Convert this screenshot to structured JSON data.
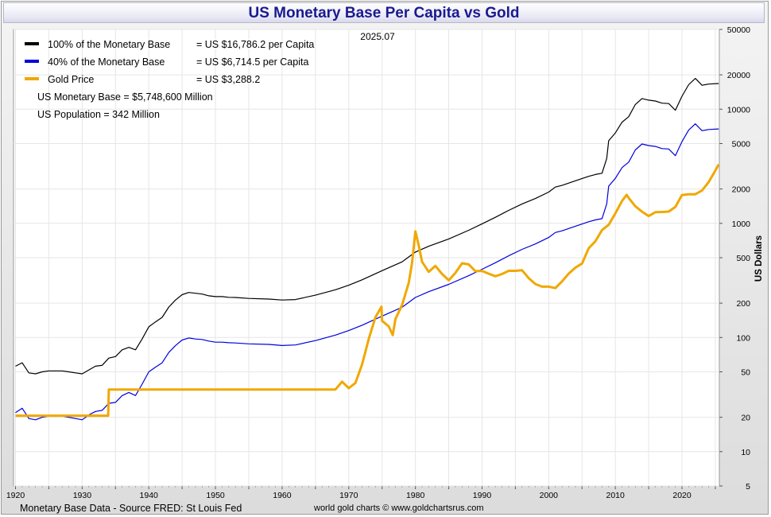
{
  "page": {
    "title": "US Monetary Base Per Capita vs Gold",
    "source_left": "Monetary Base Data - Source FRED: St Louis Fed",
    "source_right": "world gold charts © www.goldchartsrus.com"
  },
  "chart_data": {
    "type": "line",
    "title": "US Monetary Base Per Capita vs Gold",
    "date_label": "2025.07",
    "ylabel": "US Dollars",
    "yscale": "log",
    "xlim": [
      1919.7,
      2025.6
    ],
    "ylim": [
      5,
      50000
    ],
    "x_ticks": [
      1920,
      1930,
      1940,
      1950,
      1960,
      1970,
      1980,
      1990,
      2000,
      2010,
      2020
    ],
    "y_ticks": [
      5,
      10,
      20,
      50,
      100,
      200,
      500,
      1000,
      2000,
      5000,
      10000,
      20000,
      50000
    ],
    "grid": true,
    "legend_position": "top-left",
    "legend": [
      {
        "name": "100% of the Monetary Base",
        "value_text": "= US $16,786.2 per Capita",
        "color": "#000000"
      },
      {
        "name": "40% of the Monetary Base",
        "value_text": "= US $6,714.5 per Capita",
        "color": "#0000dd"
      },
      {
        "name": "Gold Price",
        "value_text": "= US $3,288.2",
        "color": "#f0a800"
      }
    ],
    "annotations": [
      "US Monetary Base = $5,748,600 Million",
      "US Population = 342 Million"
    ],
    "series": [
      {
        "name": "100% of the Monetary Base",
        "color": "#000000",
        "points": [
          [
            1920,
            56
          ],
          [
            1921,
            60
          ],
          [
            1922,
            49
          ],
          [
            1923,
            48
          ],
          [
            1924,
            50
          ],
          [
            1925,
            51
          ],
          [
            1926,
            51
          ],
          [
            1927,
            51
          ],
          [
            1928,
            50
          ],
          [
            1929,
            49
          ],
          [
            1930,
            48
          ],
          [
            1931,
            52
          ],
          [
            1932,
            56
          ],
          [
            1933,
            57
          ],
          [
            1934,
            66
          ],
          [
            1935,
            68
          ],
          [
            1936,
            78
          ],
          [
            1937,
            82
          ],
          [
            1938,
            78
          ],
          [
            1939,
            97
          ],
          [
            1940,
            124
          ],
          [
            1941,
            137
          ],
          [
            1942,
            150
          ],
          [
            1943,
            185
          ],
          [
            1944,
            213
          ],
          [
            1945,
            237
          ],
          [
            1946,
            248
          ],
          [
            1947,
            244
          ],
          [
            1948,
            240
          ],
          [
            1949,
            232
          ],
          [
            1950,
            228
          ],
          [
            1951,
            228
          ],
          [
            1952,
            225
          ],
          [
            1953,
            224
          ],
          [
            1955,
            220
          ],
          [
            1958,
            217
          ],
          [
            1960,
            213
          ],
          [
            1962,
            215
          ],
          [
            1965,
            235
          ],
          [
            1968,
            262
          ],
          [
            1970,
            287
          ],
          [
            1972,
            320
          ],
          [
            1975,
            385
          ],
          [
            1978,
            460
          ],
          [
            1980,
            560
          ],
          [
            1982,
            630
          ],
          [
            1985,
            730
          ],
          [
            1988,
            870
          ],
          [
            1990,
            990
          ],
          [
            1992,
            1130
          ],
          [
            1994,
            1300
          ],
          [
            1996,
            1480
          ],
          [
            1998,
            1650
          ],
          [
            2000,
            1880
          ],
          [
            2001,
            2080
          ],
          [
            2002,
            2150
          ],
          [
            2004,
            2360
          ],
          [
            2006,
            2580
          ],
          [
            2007,
            2680
          ],
          [
            2008,
            2750
          ],
          [
            2008.7,
            3700
          ],
          [
            2009,
            5300
          ],
          [
            2010,
            6200
          ],
          [
            2011,
            7700
          ],
          [
            2012,
            8600
          ],
          [
            2013,
            11000
          ],
          [
            2014,
            12400
          ],
          [
            2015,
            12000
          ],
          [
            2016,
            11800
          ],
          [
            2017,
            11300
          ],
          [
            2018,
            11200
          ],
          [
            2019,
            9800
          ],
          [
            2020,
            13000
          ],
          [
            2021,
            16400
          ],
          [
            2022,
            18600
          ],
          [
            2023,
            16200
          ],
          [
            2024,
            16600
          ],
          [
            2025.5,
            16786
          ]
        ]
      },
      {
        "name": "40% of the Monetary Base",
        "color": "#0000dd",
        "points": [
          [
            1920,
            22
          ],
          [
            1921,
            24
          ],
          [
            1922,
            19.5
          ],
          [
            1923,
            19
          ],
          [
            1924,
            20
          ],
          [
            1925,
            20.5
          ],
          [
            1926,
            20.5
          ],
          [
            1927,
            20.5
          ],
          [
            1928,
            20
          ],
          [
            1929,
            19.5
          ],
          [
            1930,
            19
          ],
          [
            1931,
            21
          ],
          [
            1932,
            22.5
          ],
          [
            1933,
            23
          ],
          [
            1934,
            26.5
          ],
          [
            1935,
            27
          ],
          [
            1936,
            31
          ],
          [
            1937,
            33
          ],
          [
            1938,
            31
          ],
          [
            1939,
            39
          ],
          [
            1940,
            50
          ],
          [
            1941,
            55
          ],
          [
            1942,
            60
          ],
          [
            1943,
            74
          ],
          [
            1944,
            85
          ],
          [
            1945,
            95
          ],
          [
            1946,
            99
          ],
          [
            1947,
            97
          ],
          [
            1948,
            96
          ],
          [
            1949,
            93
          ],
          [
            1950,
            91
          ],
          [
            1951,
            91
          ],
          [
            1952,
            90
          ],
          [
            1953,
            89.5
          ],
          [
            1955,
            88
          ],
          [
            1958,
            87
          ],
          [
            1960,
            85
          ],
          [
            1962,
            86
          ],
          [
            1965,
            94
          ],
          [
            1968,
            105
          ],
          [
            1970,
            115
          ],
          [
            1972,
            128
          ],
          [
            1975,
            154
          ],
          [
            1978,
            184
          ],
          [
            1980,
            224
          ],
          [
            1982,
            252
          ],
          [
            1985,
            292
          ],
          [
            1988,
            348
          ],
          [
            1990,
            396
          ],
          [
            1992,
            452
          ],
          [
            1994,
            520
          ],
          [
            1996,
            592
          ],
          [
            1998,
            660
          ],
          [
            2000,
            752
          ],
          [
            2001,
            832
          ],
          [
            2002,
            860
          ],
          [
            2004,
            944
          ],
          [
            2006,
            1032
          ],
          [
            2007,
            1072
          ],
          [
            2008,
            1100
          ],
          [
            2008.7,
            1480
          ],
          [
            2009,
            2120
          ],
          [
            2010,
            2480
          ],
          [
            2011,
            3080
          ],
          [
            2012,
            3440
          ],
          [
            2013,
            4400
          ],
          [
            2014,
            4960
          ],
          [
            2015,
            4800
          ],
          [
            2016,
            4720
          ],
          [
            2017,
            4520
          ],
          [
            2018,
            4480
          ],
          [
            2019,
            3920
          ],
          [
            2020,
            5200
          ],
          [
            2021,
            6560
          ],
          [
            2022,
            7440
          ],
          [
            2023,
            6480
          ],
          [
            2024,
            6640
          ],
          [
            2025.5,
            6714.5
          ]
        ]
      },
      {
        "name": "Gold Price",
        "color": "#f0a800",
        "points": [
          [
            1920,
            20.67
          ],
          [
            1933.9,
            20.67
          ],
          [
            1934,
            35
          ],
          [
            1968,
            35
          ],
          [
            1969,
            41
          ],
          [
            1970,
            36
          ],
          [
            1971,
            40
          ],
          [
            1972,
            58
          ],
          [
            1973,
            97
          ],
          [
            1974,
            150
          ],
          [
            1974.9,
            186
          ],
          [
            1975,
            140
          ],
          [
            1976,
            125
          ],
          [
            1976.6,
            105
          ],
          [
            1977,
            145
          ],
          [
            1978,
            193
          ],
          [
            1979,
            300
          ],
          [
            1979.5,
            450
          ],
          [
            1980,
            850
          ],
          [
            1980.5,
            640
          ],
          [
            1981,
            460
          ],
          [
            1982,
            376
          ],
          [
            1983,
            424
          ],
          [
            1984,
            360
          ],
          [
            1985,
            317
          ],
          [
            1986,
            368
          ],
          [
            1987,
            447
          ],
          [
            1988,
            437
          ],
          [
            1989,
            381
          ],
          [
            1990,
            383
          ],
          [
            1991,
            362
          ],
          [
            1992,
            344
          ],
          [
            1993,
            360
          ],
          [
            1994,
            384
          ],
          [
            1995,
            384
          ],
          [
            1996,
            388
          ],
          [
            1997,
            331
          ],
          [
            1998,
            294
          ],
          [
            1999,
            279
          ],
          [
            2000,
            279
          ],
          [
            2001,
            271
          ],
          [
            2002,
            310
          ],
          [
            2003,
            363
          ],
          [
            2004,
            409
          ],
          [
            2005,
            445
          ],
          [
            2006,
            604
          ],
          [
            2007,
            696
          ],
          [
            2008,
            872
          ],
          [
            2009,
            972
          ],
          [
            2010,
            1225
          ],
          [
            2011,
            1572
          ],
          [
            2011.7,
            1780
          ],
          [
            2012,
            1669
          ],
          [
            2013,
            1411
          ],
          [
            2014,
            1266
          ],
          [
            2015,
            1160
          ],
          [
            2016,
            1251
          ],
          [
            2017,
            1257
          ],
          [
            2018,
            1268
          ],
          [
            2019,
            1393
          ],
          [
            2020,
            1770
          ],
          [
            2021,
            1799
          ],
          [
            2022,
            1800
          ],
          [
            2023,
            1940
          ],
          [
            2024,
            2300
          ],
          [
            2025,
            2900
          ],
          [
            2025.5,
            3288.2
          ]
        ]
      }
    ]
  }
}
